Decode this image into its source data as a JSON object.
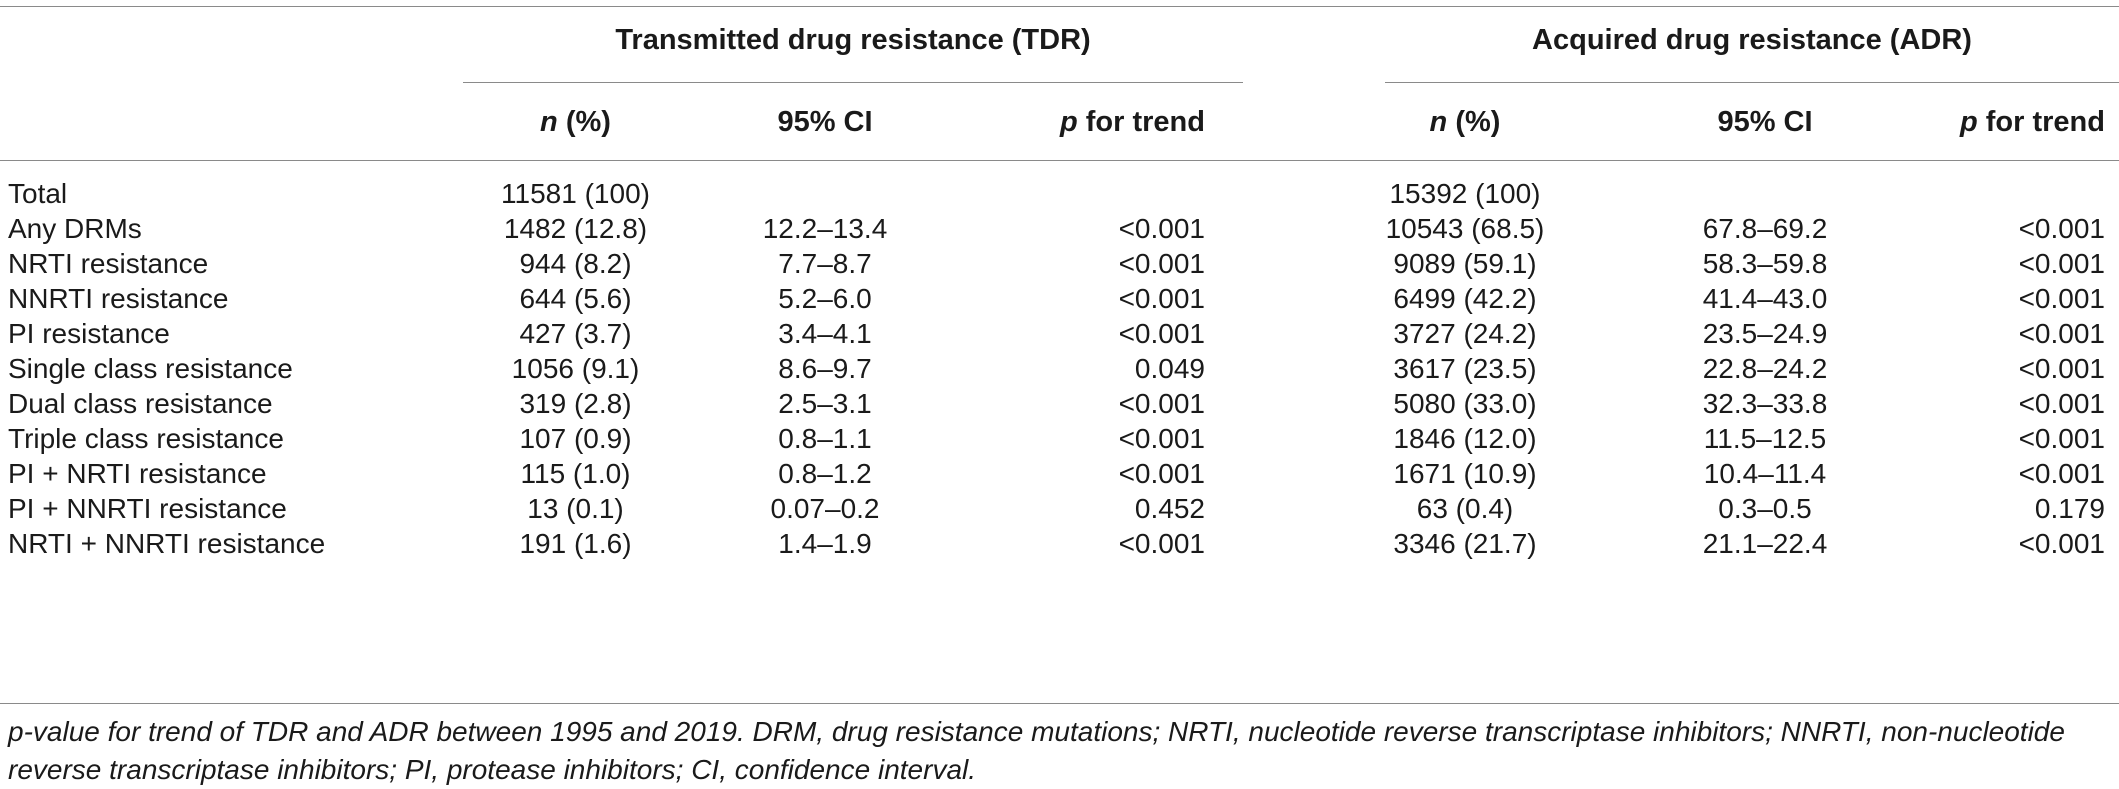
{
  "groups": {
    "tdr_title": "Transmitted drug resistance (TDR)",
    "adr_title": "Acquired drug resistance (ADR)"
  },
  "columns": {
    "n_italic": "n",
    "n_suffix": " (%)",
    "ci": "95% CI",
    "p_italic": "p",
    "p_suffix": " for trend"
  },
  "rows": [
    {
      "label": "Total",
      "tdr_n": "11581 (100)",
      "tdr_ci": "",
      "tdr_p": "",
      "adr_n": "15392 (100)",
      "adr_ci": "",
      "adr_p": ""
    },
    {
      "label": "Any DRMs",
      "tdr_n": "1482 (12.8)",
      "tdr_ci": "12.2–13.4",
      "tdr_p": "<0.001",
      "adr_n": "10543 (68.5)",
      "adr_ci": "67.8–69.2",
      "adr_p": "<0.001"
    },
    {
      "label": "NRTI resistance",
      "tdr_n": "944 (8.2)",
      "tdr_ci": "7.7–8.7",
      "tdr_p": "<0.001",
      "adr_n": "9089 (59.1)",
      "adr_ci": "58.3–59.8",
      "adr_p": "<0.001"
    },
    {
      "label": "NNRTI resistance",
      "tdr_n": "644 (5.6)",
      "tdr_ci": "5.2–6.0",
      "tdr_p": "<0.001",
      "adr_n": "6499 (42.2)",
      "adr_ci": "41.4–43.0",
      "adr_p": "<0.001"
    },
    {
      "label": "PI resistance",
      "tdr_n": "427 (3.7)",
      "tdr_ci": "3.4–4.1",
      "tdr_p": "<0.001",
      "adr_n": "3727 (24.2)",
      "adr_ci": "23.5–24.9",
      "adr_p": "<0.001"
    },
    {
      "label": "Single class resistance",
      "tdr_n": "1056 (9.1)",
      "tdr_ci": "8.6–9.7",
      "tdr_p": "0.049",
      "adr_n": "3617 (23.5)",
      "adr_ci": "22.8–24.2",
      "adr_p": "<0.001"
    },
    {
      "label": "Dual class resistance",
      "tdr_n": "319 (2.8)",
      "tdr_ci": "2.5–3.1",
      "tdr_p": "<0.001",
      "adr_n": "5080 (33.0)",
      "adr_ci": "32.3–33.8",
      "adr_p": "<0.001"
    },
    {
      "label": "Triple class resistance",
      "tdr_n": "107 (0.9)",
      "tdr_ci": "0.8–1.1",
      "tdr_p": "<0.001",
      "adr_n": "1846 (12.0)",
      "adr_ci": "11.5–12.5",
      "adr_p": "<0.001"
    },
    {
      "label": "PI + NRTI resistance",
      "tdr_n": "115 (1.0)",
      "tdr_ci": "0.8–1.2",
      "tdr_p": "<0.001",
      "adr_n": "1671 (10.9)",
      "adr_ci": "10.4–11.4",
      "adr_p": "<0.001"
    },
    {
      "label": "PI + NNRTI resistance",
      "tdr_n": "13 (0.1)",
      "tdr_ci": "0.07–0.2",
      "tdr_p": "0.452",
      "adr_n": "63 (0.4)",
      "adr_ci": "0.3–0.5",
      "adr_p": "0.179"
    },
    {
      "label": "NRTI + NNRTI resistance",
      "tdr_n": "191 (1.6)",
      "tdr_ci": "1.4–1.9",
      "tdr_p": "<0.001",
      "adr_n": "3346 (21.7)",
      "adr_ci": "21.1–22.4",
      "adr_p": "<0.001"
    }
  ],
  "footnote": "p-value for trend of TDR and ADR between 1995 and 2019. DRM, drug resistance mutations; NRTI, nucleotide reverse transcriptase inhibitors; NNRTI, non-nucleotide reverse transcriptase inhibitors; PI, protease inhibitors; CI, confidence interval."
}
